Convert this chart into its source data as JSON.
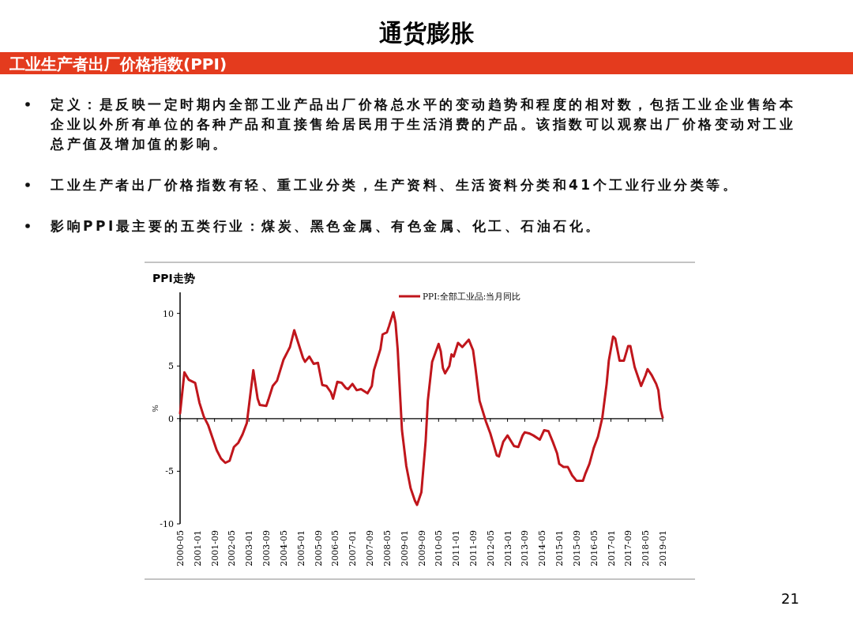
{
  "chart_data": {
    "type": "line",
    "title": "通货膨胀",
    "subtitle": "工业生产者出厂价格指数(PPI)",
    "annotations": [
      "定义：是反映一定时期内全部工业产品出厂价格总水平的变动趋势和程度的相对数，包括工业企业售给本企业以外所有单位的各种产品和直接售给居民用于生活消费的产品。该指数可以观察出厂价格变动对工业总产值及增加值的影响。",
      "工业生产者出厂价格指数有轻、重工业分类，生产资料、生活资料分类和41个工业行业分类等。",
      "影响PPI最主要的五类行业：煤炭、黑色金属、有色金属、化工、石油石化。",
      "PPI走势",
      "21"
    ],
    "ylabel": "%",
    "x": [
      "2000-05",
      "2000-07",
      "2000-09",
      "2000-12",
      "2001-02",
      "2001-04",
      "2001-06",
      "2001-08",
      "2001-10",
      "2001-12",
      "2002-02",
      "2002-04",
      "2002-06",
      "2002-08",
      "2002-10",
      "2002-12",
      "2003-03",
      "2003-05",
      "2003-06",
      "2003-09",
      "2003-10",
      "2003-12",
      "2004-02",
      "2004-05",
      "2004-07",
      "2004-08",
      "2004-10",
      "2004-12",
      "2005-02",
      "2005-03",
      "2005-05",
      "2005-07",
      "2005-09",
      "2005-11",
      "2006-01",
      "2006-03",
      "2006-04",
      "2006-06",
      "2006-08",
      "2006-10",
      "2006-11",
      "2007-01",
      "2007-03",
      "2007-05",
      "2007-08",
      "2007-10",
      "2007-11",
      "2008-02",
      "2008-03",
      "2008-05",
      "2008-06",
      "2008-08",
      "2008-09",
      "2008-10",
      "2008-12",
      "2009-02",
      "2009-04",
      "2009-06",
      "2009-07",
      "2009-09",
      "2009-11",
      "2009-12",
      "2010-02",
      "2010-05",
      "2010-06",
      "2010-07",
      "2010-08",
      "2010-10",
      "2010-11",
      "2010-12",
      "2011-02",
      "2011-04",
      "2011-07",
      "2011-09",
      "2011-10",
      "2011-12",
      "2012-03",
      "2012-05",
      "2012-08",
      "2012-09",
      "2012-11",
      "2013-01",
      "2013-04",
      "2013-06",
      "2013-08",
      "2013-09",
      "2013-11",
      "2014-01",
      "2014-04",
      "2014-06",
      "2014-08",
      "2014-10",
      "2014-12",
      "2015-01",
      "2015-03",
      "2015-05",
      "2015-07",
      "2015-09",
      "2015-11",
      "2015-12",
      "2016-01",
      "2016-03",
      "2016-05",
      "2016-07",
      "2016-09",
      "2016-11",
      "2016-12",
      "2017-02",
      "2017-03",
      "2017-05",
      "2017-07",
      "2017-09",
      "2017-10",
      "2017-12",
      "2018-03",
      "2018-05",
      "2018-06",
      "2018-08",
      "2018-10",
      "2018-11",
      "2018-12",
      "2019-01"
    ],
    "series": [
      {
        "name": "PPI:全部工业品:当月同比",
        "color": "#c0161c",
        "values": [
          0.5,
          4.4,
          3.7,
          3.4,
          1.5,
          0.2,
          -0.6,
          -1.8,
          -3.0,
          -3.8,
          -4.2,
          -4.0,
          -2.7,
          -2.3,
          -1.5,
          -0.4,
          4.6,
          1.9,
          1.3,
          1.2,
          1.8,
          3.1,
          3.6,
          5.6,
          6.4,
          6.8,
          8.4,
          7.1,
          5.8,
          5.4,
          5.9,
          5.2,
          5.3,
          3.2,
          3.1,
          2.5,
          1.9,
          3.5,
          3.4,
          2.9,
          2.8,
          3.3,
          2.7,
          2.8,
          2.4,
          3.1,
          4.6,
          6.6,
          8.0,
          8.2,
          8.8,
          10.1,
          9.1,
          6.6,
          -1.1,
          -4.5,
          -6.6,
          -7.8,
          -8.2,
          -7.0,
          -2.1,
          1.7,
          5.4,
          7.1,
          6.4,
          4.8,
          4.3,
          5.0,
          6.1,
          5.9,
          7.2,
          6.8,
          7.5,
          6.5,
          5.0,
          1.7,
          -0.3,
          -1.4,
          -3.5,
          -3.6,
          -2.2,
          -1.6,
          -2.6,
          -2.7,
          -1.6,
          -1.3,
          -1.4,
          -1.6,
          -2.0,
          -1.1,
          -1.2,
          -2.2,
          -3.3,
          -4.3,
          -4.6,
          -4.6,
          -5.4,
          -5.9,
          -5.9,
          -5.9,
          -5.3,
          -4.3,
          -2.8,
          -1.7,
          0.1,
          3.3,
          5.5,
          7.8,
          7.6,
          5.5,
          5.5,
          6.9,
          6.9,
          4.9,
          3.1,
          4.1,
          4.7,
          4.1,
          3.3,
          2.7,
          0.9,
          0.1
        ]
      }
    ],
    "xlim": [
      "2000-05",
      "2019-01"
    ],
    "xticks": [
      "2000-05",
      "2001-01",
      "2001-09",
      "2002-05",
      "2003-01",
      "2003-09",
      "2004-05",
      "2005-01",
      "2005-09",
      "2006-05",
      "2007-01",
      "2007-09",
      "2008-05",
      "2009-01",
      "2009-09",
      "2010-05",
      "2011-01",
      "2011-09",
      "2012-05",
      "2013-01",
      "2013-09",
      "2014-05",
      "2015-01",
      "2015-09",
      "2016-05",
      "2017-01",
      "2017-09",
      "2018-05",
      "2019-01"
    ],
    "ylim": [
      -10,
      12
    ],
    "yticks": [
      -10,
      -5,
      0,
      5,
      10
    ],
    "ref_lines": [
      {
        "axis": "y",
        "value": 0
      }
    ],
    "legend": "top right",
    "grid": false,
    "marker": "none",
    "line_style": "solid"
  }
}
